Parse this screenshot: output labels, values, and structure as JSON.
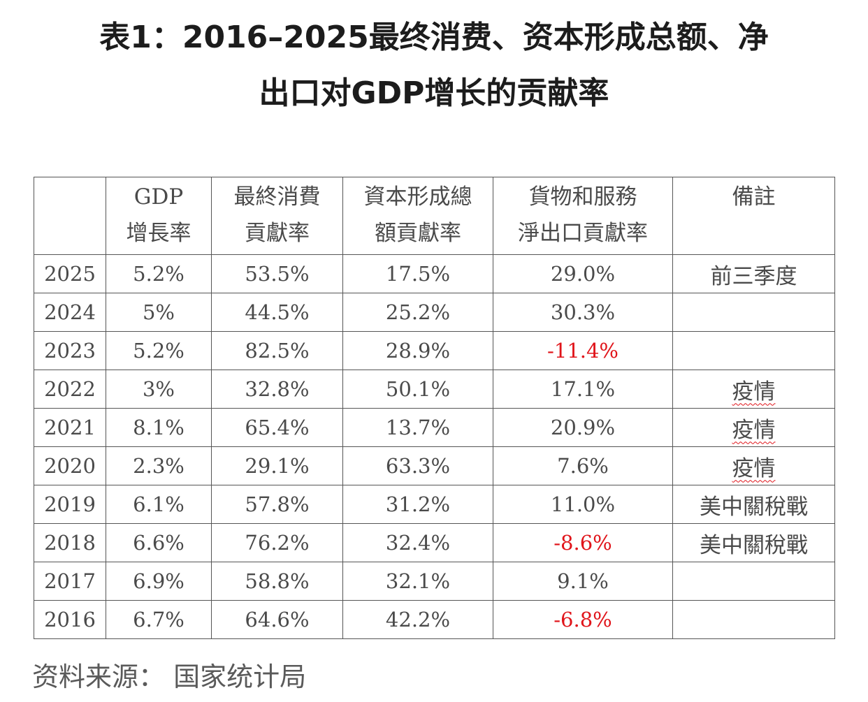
{
  "title_line1": "表1：2016–2025最终消费、资本形成总额、净",
  "title_line2": "出口对GDP增长的贡献率",
  "headers": [
    [
      "",
      ""
    ],
    [
      "GDP",
      "增長率"
    ],
    [
      "最終消費",
      "貢獻率"
    ],
    [
      "資本形成總",
      "額貢獻率"
    ],
    [
      "貨物和服務",
      "淨出口貢獻率"
    ],
    [
      "備註",
      ""
    ]
  ],
  "rows": [
    {
      "year": "2025",
      "gdp": "5.2%",
      "consumption": "53.5%",
      "capital": "17.5%",
      "net_exports": "29.0%",
      "note": "前三季度"
    },
    {
      "year": "2024",
      "gdp": "5%",
      "consumption": "44.5%",
      "capital": "25.2%",
      "net_exports": "30.3%",
      "note": ""
    },
    {
      "year": "2023",
      "gdp": "5.2%",
      "consumption": "82.5%",
      "capital": "28.9%",
      "net_exports": "-11.4%",
      "note": ""
    },
    {
      "year": "2022",
      "gdp": "3%",
      "consumption": "32.8%",
      "capital": "50.1%",
      "net_exports": "17.1%",
      "note": "疫情"
    },
    {
      "year": "2021",
      "gdp": "8.1%",
      "consumption": "65.4%",
      "capital": "13.7%",
      "net_exports": "20.9%",
      "note": "疫情"
    },
    {
      "year": "2020",
      "gdp": "2.3%",
      "consumption": "29.1%",
      "capital": "63.3%",
      "net_exports": "7.6%",
      "note": "疫情"
    },
    {
      "year": "2019",
      "gdp": "6.1%",
      "consumption": "57.8%",
      "capital": "31.2%",
      "net_exports": "11.0%",
      "note": "美中關稅戰"
    },
    {
      "year": "2018",
      "gdp": "6.6%",
      "consumption": "76.2%",
      "capital": "32.4%",
      "net_exports": "-8.6%",
      "note": "美中關稅戰"
    },
    {
      "year": "2017",
      "gdp": "6.9%",
      "consumption": "58.8%",
      "capital": "32.1%",
      "net_exports": "9.1%",
      "note": ""
    },
    {
      "year": "2016",
      "gdp": "6.7%",
      "consumption": "64.6%",
      "capital": "42.2%",
      "net_exports": "-6.8%",
      "note": ""
    }
  ],
  "source": "资料来源：  国家统计局",
  "colors": {
    "negative": "#e0141a",
    "text": "#4a4a4a"
  }
}
